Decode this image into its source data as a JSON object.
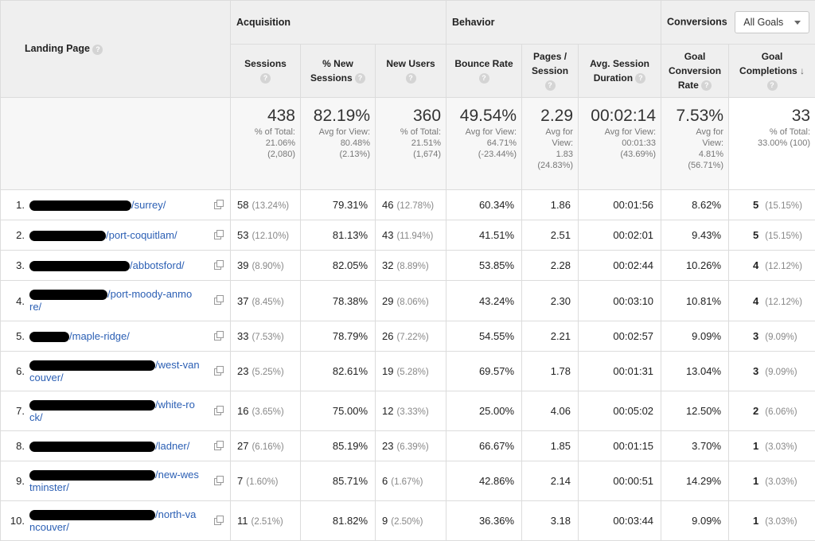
{
  "header": {
    "landing_page": "Landing Page",
    "acquisition": "Acquisition",
    "behavior": "Behavior",
    "conversions": "Conversions",
    "goal_select": "All Goals",
    "help_glyph": "?",
    "sort_glyph": "↓",
    "columns": {
      "sessions": "Sessions",
      "pct_new_sessions_1": "% New",
      "pct_new_sessions_2": "Sessions",
      "new_users": "New Users",
      "bounce_rate": "Bounce Rate",
      "pages_session_1": "Pages /",
      "pages_session_2": "Session",
      "avg_session_1": "Avg. Session",
      "avg_session_2": "Duration",
      "goal_conv_1": "Goal",
      "goal_conv_2": "Conversion",
      "goal_conv_3": "Rate",
      "goal_comp_1": "Goal",
      "goal_comp_2": "Completions"
    }
  },
  "totals": {
    "sessions": {
      "big": "438",
      "l1": "% of Total:",
      "l2": "21.06%",
      "l3": "(2,080)"
    },
    "new_sessions": {
      "big": "82.19%",
      "l1": "Avg for View:",
      "l2": "80.48%",
      "l3": "(2.13%)"
    },
    "new_users": {
      "big": "360",
      "l1": "% of Total:",
      "l2": "21.51%",
      "l3": "(1,674)"
    },
    "bounce": {
      "big": "49.54%",
      "l1": "Avg for View:",
      "l2": "64.71%",
      "l3": "(-23.44%)"
    },
    "pages": {
      "big": "2.29",
      "l1": "Avg for",
      "l2": "View:",
      "l3": "1.83",
      "l4": "(24.83%)"
    },
    "duration": {
      "big": "00:02:14",
      "l1": "Avg for View:",
      "l2": "00:01:33",
      "l3": "(43.69%)"
    },
    "conv_rate": {
      "big": "7.53%",
      "l1": "Avg for",
      "l2": "View:",
      "l3": "4.81%",
      "l4": "(56.71%)"
    },
    "completions": {
      "big": "33",
      "l1": "% of Total:",
      "l2": "33.00% (100)"
    }
  },
  "rows": [
    {
      "n": "1.",
      "l1": "/surrey/",
      "l2": "",
      "s": "58",
      "sp": "(13.24%)",
      "ns": "79.31%",
      "nu": "46",
      "nup": "(12.78%)",
      "br": "60.34%",
      "ps": "1.86",
      "d": "00:01:56",
      "cr": "8.62%",
      "gc": "5",
      "gcp": "(15.15%)"
    },
    {
      "n": "2.",
      "l1": "/port-coquitlam/",
      "l2": "",
      "s": "53",
      "sp": "(12.10%)",
      "ns": "81.13%",
      "nu": "43",
      "nup": "(11.94%)",
      "br": "41.51%",
      "ps": "2.51",
      "d": "00:02:01",
      "cr": "9.43%",
      "gc": "5",
      "gcp": "(15.15%)"
    },
    {
      "n": "3.",
      "l1": "/abbotsford/",
      "l2": "",
      "s": "39",
      "sp": "(8.90%)",
      "ns": "82.05%",
      "nu": "32",
      "nup": "(8.89%)",
      "br": "53.85%",
      "ps": "2.28",
      "d": "00:02:44",
      "cr": "10.26%",
      "gc": "4",
      "gcp": "(12.12%)"
    },
    {
      "n": "4.",
      "l1": "/port-moody-anmo",
      "l2": "re/",
      "s": "37",
      "sp": "(8.45%)",
      "ns": "78.38%",
      "nu": "29",
      "nup": "(8.06%)",
      "br": "43.24%",
      "ps": "2.30",
      "d": "00:03:10",
      "cr": "10.81%",
      "gc": "4",
      "gcp": "(12.12%)"
    },
    {
      "n": "5.",
      "l1": "/maple-ridge/",
      "l2": "",
      "s": "33",
      "sp": "(7.53%)",
      "ns": "78.79%",
      "nu": "26",
      "nup": "(7.22%)",
      "br": "54.55%",
      "ps": "2.21",
      "d": "00:02:57",
      "cr": "9.09%",
      "gc": "3",
      "gcp": "(9.09%)"
    },
    {
      "n": "6.",
      "l1": "/west-van",
      "l2": "couver/",
      "s": "23",
      "sp": "(5.25%)",
      "ns": "82.61%",
      "nu": "19",
      "nup": "(5.28%)",
      "br": "69.57%",
      "ps": "1.78",
      "d": "00:01:31",
      "cr": "13.04%",
      "gc": "3",
      "gcp": "(9.09%)"
    },
    {
      "n": "7.",
      "l1": "/white-ro",
      "l2": "ck/",
      "s": "16",
      "sp": "(3.65%)",
      "ns": "75.00%",
      "nu": "12",
      "nup": "(3.33%)",
      "br": "25.00%",
      "ps": "4.06",
      "d": "00:05:02",
      "cr": "12.50%",
      "gc": "2",
      "gcp": "(6.06%)"
    },
    {
      "n": "8.",
      "l1": "/ladner/",
      "l2": "",
      "s": "27",
      "sp": "(6.16%)",
      "ns": "85.19%",
      "nu": "23",
      "nup": "(6.39%)",
      "br": "66.67%",
      "ps": "1.85",
      "d": "00:01:15",
      "cr": "3.70%",
      "gc": "1",
      "gcp": "(3.03%)"
    },
    {
      "n": "9.",
      "l1": "/new-wes",
      "l2": "tminster/",
      "s": "7",
      "sp": "(1.60%)",
      "ns": "85.71%",
      "nu": "6",
      "nup": "(1.67%)",
      "br": "42.86%",
      "ps": "2.14",
      "d": "00:00:51",
      "cr": "14.29%",
      "gc": "1",
      "gcp": "(3.03%)"
    },
    {
      "n": "10.",
      "l1": "/north-va",
      "l2": "ncouver/",
      "s": "11",
      "sp": "(2.51%)",
      "ns": "81.82%",
      "nu": "9",
      "nup": "(2.50%)",
      "br": "36.36%",
      "ps": "3.18",
      "d": "00:03:44",
      "cr": "9.09%",
      "gc": "1",
      "gcp": "(3.03%)"
    }
  ]
}
